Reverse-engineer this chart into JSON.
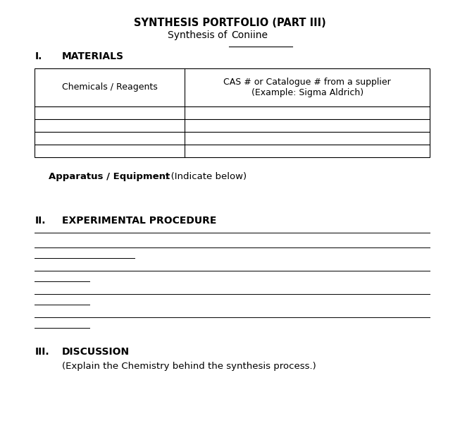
{
  "title": "SYNTHESIS PORTFOLIO (PART III)",
  "subtitle_prefix": "Synthesis of ",
  "subtitle_underlined": "Coniine",
  "section1_label": "I.",
  "section1_title": "MATERIALS",
  "table_col1_header": "Chemicals / Reagents",
  "table_col2_header": "CAS # or Catalogue # from a supplier\n(Example: Sigma Aldrich)",
  "table_num_data_rows": 4,
  "apparatus_bold": "Apparatus / Equipment",
  "apparatus_normal": ": (Indicate below)",
  "section2_label": "II.",
  "section2_title": "EXPERIMENTAL PROCEDURE",
  "section3_label": "III.",
  "section3_title": "DISCUSSION",
  "section3_subtitle": "(Explain the Chemistry behind the synthesis process.)",
  "bg_color": "#ffffff",
  "text_color": "#000000",
  "line_specs": [
    [
      0.07,
      0.94,
      0.455
    ],
    [
      0.07,
      0.94,
      0.42
    ],
    [
      0.07,
      0.29,
      0.395
    ],
    [
      0.07,
      0.94,
      0.365
    ],
    [
      0.07,
      0.19,
      0.34
    ],
    [
      0.07,
      0.94,
      0.31
    ],
    [
      0.07,
      0.19,
      0.285
    ],
    [
      0.07,
      0.94,
      0.255
    ],
    [
      0.07,
      0.19,
      0.23
    ]
  ]
}
